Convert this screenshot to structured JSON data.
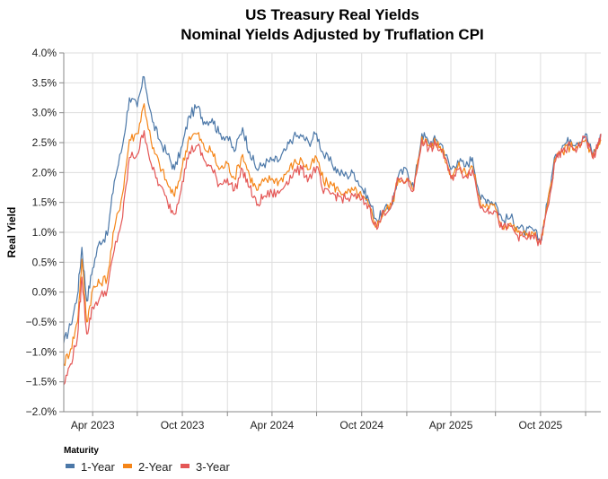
{
  "chart_data": {
    "type": "line",
    "title": "US Treasury Real Yields",
    "subtitle": "Nominal Yields Adjusted by Truflation CPI",
    "xlabel": "",
    "ylabel": "Real Yield",
    "ylim": [
      -2.0,
      4.0
    ],
    "xlim": [
      "2023-02-01",
      "2026-02-01"
    ],
    "y_ticks": [
      4.0,
      3.5,
      3.0,
      2.5,
      2.0,
      1.5,
      1.0,
      0.5,
      0.0,
      -0.5,
      -1.0,
      -1.5,
      -2.0
    ],
    "y_tick_labels": [
      "4.0%",
      "3.5%",
      "3.0%",
      "2.5%",
      "2.0%",
      "1.5%",
      "1.0%",
      "0.5%",
      "0.0%",
      "−0.5%",
      "−1.0%",
      "−1.5%",
      "−2.0%"
    ],
    "x_ticks": [
      "2023-04-01",
      "2023-07-01",
      "2023-10-01",
      "2024-01-01",
      "2024-04-01",
      "2024-07-01",
      "2024-10-01",
      "2025-01-01",
      "2025-04-01",
      "2025-07-01",
      "2025-10-01",
      "2026-01-01"
    ],
    "x_tick_labels": [
      "Apr 2023",
      "",
      "Oct 2023",
      "",
      "Apr 2024",
      "",
      "Oct 2024",
      "",
      "Apr 2025",
      "",
      "Oct 2025",
      ""
    ],
    "grid": true,
    "legend": {
      "title": "Maturity",
      "position": "bottom-left"
    },
    "x": [
      "2023-02-01",
      "2023-02-15",
      "2023-03-01",
      "2023-03-10",
      "2023-03-20",
      "2023-04-01",
      "2023-04-15",
      "2023-05-01",
      "2023-05-15",
      "2023-06-01",
      "2023-06-15",
      "2023-07-01",
      "2023-07-15",
      "2023-08-01",
      "2023-08-15",
      "2023-09-01",
      "2023-09-15",
      "2023-10-01",
      "2023-10-15",
      "2023-11-01",
      "2023-11-15",
      "2023-12-01",
      "2023-12-15",
      "2024-01-01",
      "2024-01-15",
      "2024-02-01",
      "2024-02-15",
      "2024-03-01",
      "2024-03-15",
      "2024-04-01",
      "2024-04-15",
      "2024-05-01",
      "2024-05-15",
      "2024-06-01",
      "2024-06-15",
      "2024-07-01",
      "2024-07-15",
      "2024-08-01",
      "2024-08-15",
      "2024-09-01",
      "2024-09-15",
      "2024-10-01",
      "2024-10-15",
      "2024-11-01",
      "2024-11-15",
      "2024-12-01",
      "2024-12-15",
      "2025-01-01",
      "2025-01-15",
      "2025-02-01",
      "2025-02-15",
      "2025-03-01",
      "2025-03-15",
      "2025-04-01",
      "2025-04-15",
      "2025-05-01",
      "2025-05-15",
      "2025-06-01",
      "2025-06-15",
      "2025-07-01",
      "2025-07-15",
      "2025-08-01",
      "2025-08-15",
      "2025-09-01",
      "2025-09-15",
      "2025-10-01",
      "2025-10-15",
      "2025-11-01",
      "2025-11-15",
      "2025-12-01",
      "2025-12-15",
      "2026-01-01",
      "2026-01-15",
      "2026-01-25",
      "2026-02-01"
    ],
    "series": [
      {
        "name": "1-Year",
        "color": "#4c78a8",
        "values": [
          -0.85,
          -0.55,
          -0.05,
          0.75,
          -0.15,
          0.4,
          0.85,
          0.95,
          1.85,
          2.45,
          3.25,
          3.1,
          3.6,
          2.85,
          2.55,
          2.3,
          2.05,
          2.45,
          2.95,
          3.1,
          2.85,
          2.9,
          2.65,
          2.6,
          2.35,
          2.75,
          2.35,
          2.05,
          2.15,
          2.2,
          2.2,
          2.4,
          2.6,
          2.6,
          2.5,
          2.65,
          2.3,
          2.15,
          2.0,
          1.95,
          2.0,
          1.75,
          1.55,
          1.2,
          1.35,
          1.45,
          1.95,
          2.05,
          1.75,
          2.65,
          2.5,
          2.55,
          2.45,
          2.05,
          2.2,
          2.1,
          2.25,
          1.55,
          1.55,
          1.5,
          1.2,
          1.25,
          1.1,
          1.0,
          1.05,
          0.85,
          1.5,
          2.3,
          2.45,
          2.55,
          2.5,
          2.65,
          2.3,
          2.45,
          2.6
        ]
      },
      {
        "name": "2-Year",
        "color": "#f58518",
        "values": [
          -1.2,
          -0.95,
          -0.5,
          0.55,
          -0.5,
          0.05,
          0.15,
          0.25,
          1.05,
          1.65,
          2.55,
          2.65,
          3.15,
          2.4,
          2.15,
          1.8,
          1.6,
          2.1,
          2.6,
          2.65,
          2.4,
          2.35,
          2.05,
          2.15,
          1.9,
          2.3,
          1.95,
          1.7,
          1.85,
          1.9,
          1.85,
          2.0,
          2.15,
          2.2,
          2.05,
          2.25,
          1.85,
          1.8,
          1.7,
          1.65,
          1.7,
          1.6,
          1.45,
          1.1,
          1.35,
          1.45,
          1.9,
          1.9,
          1.7,
          2.6,
          2.45,
          2.5,
          2.4,
          1.95,
          2.1,
          2.0,
          2.1,
          1.45,
          1.45,
          1.4,
          1.1,
          1.15,
          1.0,
          0.95,
          1.0,
          0.8,
          1.45,
          2.25,
          2.35,
          2.45,
          2.4,
          2.55,
          2.25,
          2.4,
          2.55
        ]
      },
      {
        "name": "3-Year",
        "color": "#e45756",
        "values": [
          -1.55,
          -1.2,
          -0.75,
          0.25,
          -0.7,
          -0.25,
          -0.1,
          0.05,
          0.7,
          1.25,
          2.25,
          2.3,
          2.7,
          2.05,
          1.8,
          1.5,
          1.3,
          1.85,
          2.35,
          2.45,
          2.2,
          2.05,
          1.8,
          1.9,
          1.7,
          2.05,
          1.75,
          1.45,
          1.6,
          1.65,
          1.65,
          1.85,
          2.0,
          2.05,
          1.9,
          2.1,
          1.65,
          1.65,
          1.6,
          1.55,
          1.6,
          1.55,
          1.45,
          1.05,
          1.35,
          1.45,
          1.9,
          1.85,
          1.7,
          2.55,
          2.4,
          2.45,
          2.35,
          1.9,
          2.05,
          1.95,
          2.05,
          1.4,
          1.4,
          1.35,
          1.05,
          1.1,
          0.95,
          0.9,
          0.95,
          0.8,
          1.4,
          2.2,
          2.35,
          2.45,
          2.4,
          2.6,
          2.25,
          2.4,
          2.65
        ]
      }
    ]
  }
}
